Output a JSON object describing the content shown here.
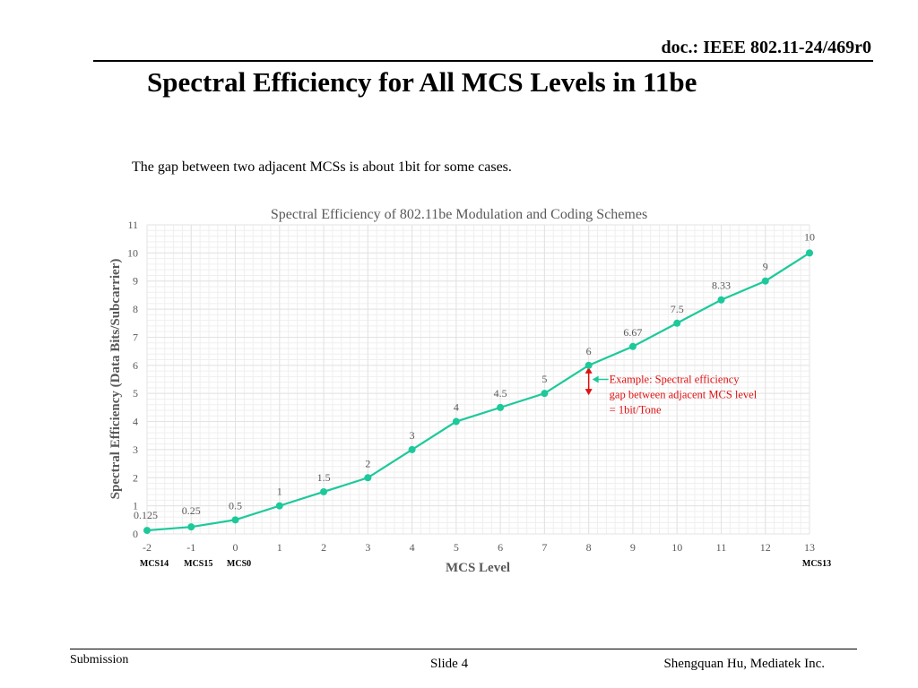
{
  "header": {
    "doc_id": "doc.: IEEE 802.11-24/469r0",
    "title": "Spectral Efficiency for All MCS Levels in 11be",
    "subtitle": "The gap between two adjacent MCSs is about 1bit for some cases."
  },
  "footer": {
    "left": "Submission",
    "center": "Slide 4",
    "right": "Shengquan Hu, Mediatek Inc."
  },
  "colors": {
    "series": "#1dc99a",
    "grid": "#e3e3e3",
    "annotation": "#e01010",
    "axis_text": "#595959"
  },
  "chart_data": {
    "type": "line",
    "title": "Spectral Efficiency of 802.11be Modulation and Coding Schemes",
    "xlabel": "MCS Level",
    "ylabel": "Spectral Efficiency (Data Bits/Subcarrier)",
    "xlim": [
      -2,
      13
    ],
    "ylim": [
      0,
      11
    ],
    "x_ticks": [
      -2,
      -1,
      0,
      1,
      2,
      3,
      4,
      5,
      6,
      7,
      8,
      9,
      10,
      11,
      12,
      13
    ],
    "y_ticks": [
      0,
      1,
      2,
      3,
      4,
      5,
      6,
      7,
      8,
      9,
      10,
      11
    ],
    "grid": true,
    "series": [
      {
        "name": "Spectral Efficiency",
        "x": [
          -2,
          -1,
          0,
          1,
          2,
          3,
          4,
          5,
          6,
          7,
          8,
          9,
          10,
          11,
          12,
          13
        ],
        "values": [
          0.125,
          0.25,
          0.5,
          1,
          1.5,
          2,
          3,
          4,
          4.5,
          5,
          6,
          6.67,
          7.5,
          8.33,
          9,
          10
        ],
        "labels": [
          "0.125",
          "0.25",
          "0.5",
          "1",
          "1.5",
          "2",
          "3",
          "4",
          "4.5",
          "5",
          "6",
          "6.67",
          "7.5",
          "8.33",
          "9",
          "10"
        ]
      }
    ],
    "mcs_labels": [
      {
        "x": -2,
        "text": "MCS14"
      },
      {
        "x": -1,
        "text": "MCS15"
      },
      {
        "x": 0,
        "text": "MCS0"
      },
      {
        "x": 13,
        "text": "MCS13"
      }
    ],
    "annotation": {
      "x": 8,
      "y_from": 5,
      "y_to": 6,
      "lines": [
        "Example: Spectral efficiency",
        "gap between adjacent MCS level",
        "= 1bit/Tone"
      ]
    }
  }
}
